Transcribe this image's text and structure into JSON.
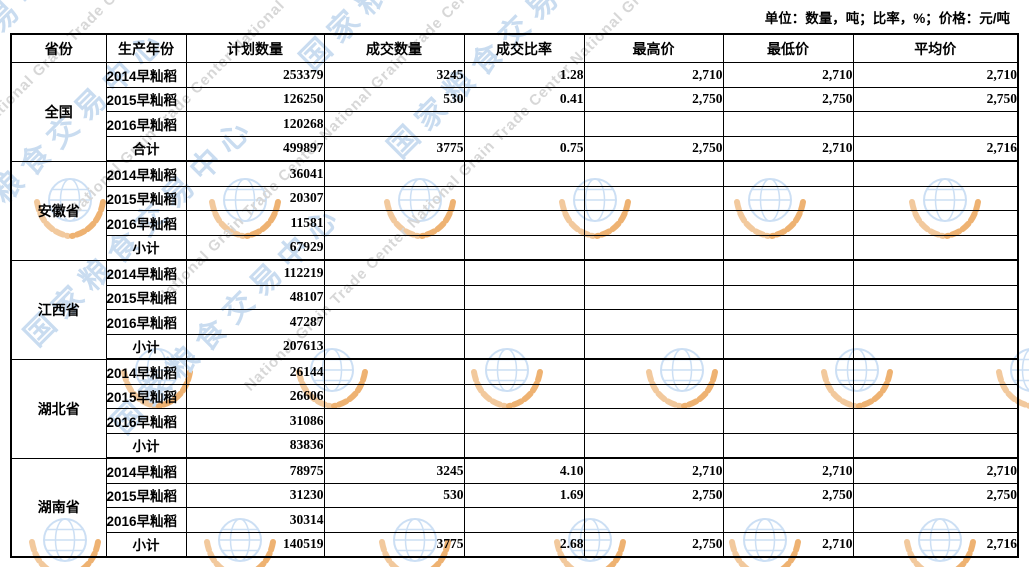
{
  "page": {
    "unit_note": "单位：数量，吨；比率，%；价格：元/吨"
  },
  "watermark": {
    "cn": "国家粮食交易中心",
    "en": "National Grain Trade Center",
    "cn_color": "#c9dcf0",
    "en_color": "#d7d7d7",
    "globe_color": "#ccdff4",
    "wheat_color": "#f4c globe",
    "wheat_main": "#f2c99d",
    "wheat_leaf": "#eeb272"
  },
  "table": {
    "columns": [
      "省份",
      "生产年份",
      "计划数量",
      "成交数量",
      "成交比率",
      "最高价",
      "最低价",
      "平均价"
    ],
    "sections": [
      {
        "province": "全国",
        "rows": [
          {
            "year": "2014早籼稻",
            "values": [
              "253379",
              "3245",
              "1.28",
              "2,710",
              "2,710",
              "2,710"
            ]
          },
          {
            "year": "2015早籼稻",
            "values": [
              "126250",
              "530",
              "0.41",
              "2,750",
              "2,750",
              "2,750"
            ]
          },
          {
            "year": "2016早籼稻",
            "values": [
              "120268",
              "",
              "",
              "",
              "",
              ""
            ]
          },
          {
            "year": "合计",
            "values": [
              "499897",
              "3775",
              "0.75",
              "2,750",
              "2,710",
              "2,716"
            ]
          }
        ]
      },
      {
        "province": "安徽省",
        "rows": [
          {
            "year": "2014早籼稻",
            "values": [
              "36041",
              "",
              "",
              "",
              "",
              ""
            ]
          },
          {
            "year": "2015早籼稻",
            "values": [
              "20307",
              "",
              "",
              "",
              "",
              ""
            ]
          },
          {
            "year": "2016早籼稻",
            "values": [
              "11581",
              "",
              "",
              "",
              "",
              ""
            ]
          },
          {
            "year": "小计",
            "values": [
              "67929",
              "",
              "",
              "",
              "",
              ""
            ]
          }
        ]
      },
      {
        "province": "江西省",
        "rows": [
          {
            "year": "2014早籼稻",
            "values": [
              "112219",
              "",
              "",
              "",
              "",
              ""
            ]
          },
          {
            "year": "2015早籼稻",
            "values": [
              "48107",
              "",
              "",
              "",
              "",
              ""
            ]
          },
          {
            "year": "2016早籼稻",
            "values": [
              "47287",
              "",
              "",
              "",
              "",
              ""
            ]
          },
          {
            "year": "小计",
            "values": [
              "207613",
              "",
              "",
              "",
              "",
              ""
            ]
          }
        ]
      },
      {
        "province": "湖北省",
        "rows": [
          {
            "year": "2014早籼稻",
            "values": [
              "26144",
              "",
              "",
              "",
              "",
              ""
            ]
          },
          {
            "year": "2015早籼稻",
            "values": [
              "26606",
              "",
              "",
              "",
              "",
              ""
            ]
          },
          {
            "year": "2016早籼稻",
            "values": [
              "31086",
              "",
              "",
              "",
              "",
              ""
            ]
          },
          {
            "year": "小计",
            "values": [
              "83836",
              "",
              "",
              "",
              "",
              ""
            ]
          }
        ]
      },
      {
        "province": "湖南省",
        "rows": [
          {
            "year": "2014早籼稻",
            "values": [
              "78975",
              "3245",
              "4.10",
              "2,710",
              "2,710",
              "2,710"
            ]
          },
          {
            "year": "2015早籼稻",
            "values": [
              "31230",
              "530",
              "1.69",
              "2,750",
              "2,750",
              "2,750"
            ]
          },
          {
            "year": "2016早籼稻",
            "values": [
              "30314",
              "",
              "",
              "",
              "",
              ""
            ]
          },
          {
            "year": "小计",
            "values": [
              "140519",
              "3775",
              "2.68",
              "2,750",
              "2,710",
              "2,716"
            ]
          }
        ]
      }
    ]
  }
}
